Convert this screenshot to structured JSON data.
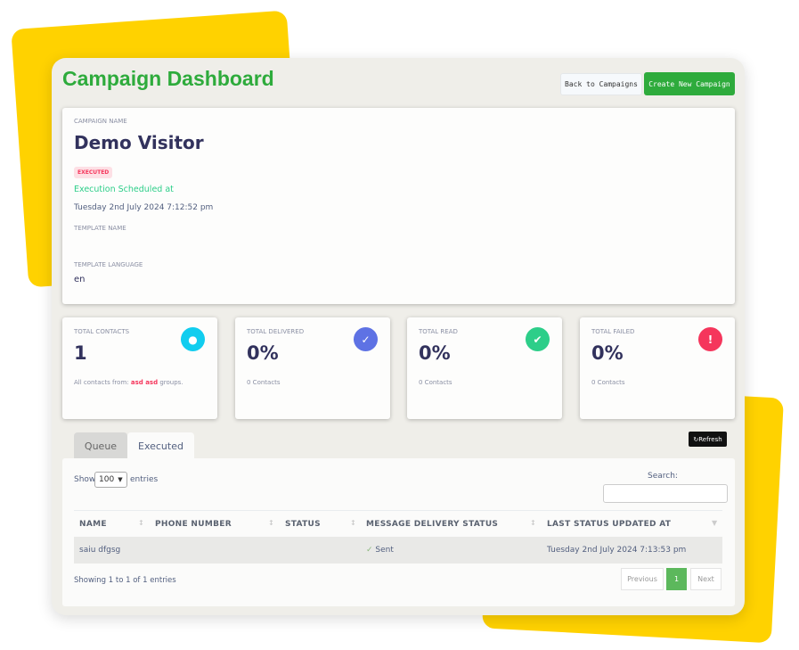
{
  "header": {
    "title": "Campaign Dashboard",
    "back_label": "Back to Campaigns",
    "create_label": "Create New Campaign"
  },
  "campaign": {
    "name_label": "CAMPAIGN NAME",
    "name": "Demo Visitor",
    "status_badge": "EXECUTED",
    "scheduled_label": "Execution Scheduled at",
    "scheduled_at": "Tuesday 2nd July 2024 7:12:52 pm",
    "template_name_label": "TEMPLATE NAME",
    "template_name": "",
    "template_language_label": "TEMPLATE LANGUAGE",
    "template_language": "en"
  },
  "stats": [
    {
      "label": "TOTAL CONTACTS",
      "value": "1",
      "note_prefix": "All contacts from: ",
      "note_highlight": "asd asd",
      "note_suffix": " groups.",
      "icon": "user-icon",
      "color": "#11cdef"
    },
    {
      "label": "TOTAL DELIVERED",
      "value": "0%",
      "note": "0 Contacts",
      "icon": "check-icon",
      "color": "#5e72e4"
    },
    {
      "label": "TOTAL READ",
      "value": "0%",
      "note": "0 Contacts",
      "icon": "double-check-icon",
      "color": "#2dce89"
    },
    {
      "label": "TOTAL FAILED",
      "value": "0%",
      "note": "0 Contacts",
      "icon": "alert-icon",
      "color": "#f5365c"
    }
  ],
  "tabs": [
    {
      "label": "Queue"
    },
    {
      "label": "Executed"
    }
  ],
  "refresh_label": "Refresh",
  "table": {
    "show_label": "Show",
    "entries_value": "100",
    "entries_label": "entries",
    "search_label": "Search:",
    "search_value": "",
    "columns": [
      "NAME",
      "PHONE NUMBER",
      "STATUS",
      "MESSAGE DELIVERY STATUS",
      "LAST STATUS UPDATED AT"
    ],
    "rows": [
      {
        "name": "saiu dfgsg",
        "phone": "",
        "status": "",
        "delivery": "Sent",
        "updated": "Tuesday 2nd July 2024 7:13:53 pm"
      }
    ],
    "info": "Showing 1 to 1 of 1 entries",
    "prev": "Previous",
    "page": "1",
    "next": "Next"
  }
}
